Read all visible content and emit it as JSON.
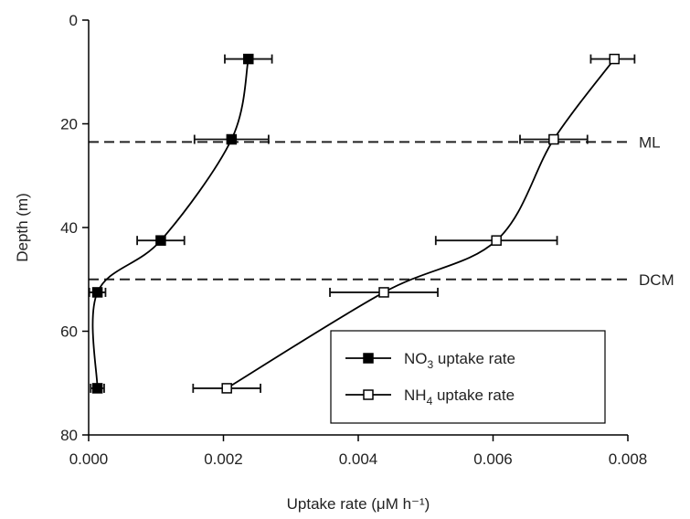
{
  "chart_data": {
    "type": "scatter",
    "title": "",
    "xlabel": "Uptake rate (μM h⁻¹)",
    "ylabel": "Depth (m)",
    "xlim": [
      0.0,
      0.008
    ],
    "ylim": [
      80,
      0
    ],
    "y_inverted": true,
    "x_ticks": [
      "0.000",
      "0.002",
      "0.004",
      "0.006",
      "0.008"
    ],
    "y_ticks": [
      "0",
      "20",
      "40",
      "60",
      "80"
    ],
    "grid": false,
    "legend_position": "lower-right",
    "series": [
      {
        "name": "NO₃ uptake rate",
        "marker": "filled-square",
        "color": "#000000",
        "points": [
          {
            "depth": 7.5,
            "rate": 0.00237,
            "err": 0.00035
          },
          {
            "depth": 23,
            "rate": 0.00212,
            "err": 0.00055
          },
          {
            "depth": 42.5,
            "rate": 0.00107,
            "err": 0.00035
          },
          {
            "depth": 52.5,
            "rate": 0.00013,
            "err": 0.00012
          },
          {
            "depth": 71,
            "rate": 0.00013,
            "err": 0.0001
          }
        ]
      },
      {
        "name": "NH₄ uptake rate",
        "marker": "open-square",
        "color": "#000000",
        "points": [
          {
            "depth": 7.5,
            "rate": 0.0078,
            "err": 0.00035
          },
          {
            "depth": 23,
            "rate": 0.0069,
            "err": 0.0005
          },
          {
            "depth": 42.5,
            "rate": 0.00605,
            "err": 0.0009
          },
          {
            "depth": 52.5,
            "rate": 0.00438,
            "err": 0.0008
          },
          {
            "depth": 71,
            "rate": 0.00205,
            "err": 0.0005
          }
        ]
      }
    ],
    "reference_lines": [
      {
        "depth": 23.5,
        "label": "ML",
        "style": "dashed"
      },
      {
        "depth": 50,
        "label": "DCM",
        "style": "dashed"
      }
    ],
    "legend": [
      {
        "label_main": "NO",
        "label_sub": "3",
        "label_rest": " uptake rate",
        "marker": "filled-square"
      },
      {
        "label_main": "NH",
        "label_sub": "4",
        "label_rest": " uptake  rate",
        "marker": "open-square"
      }
    ]
  }
}
